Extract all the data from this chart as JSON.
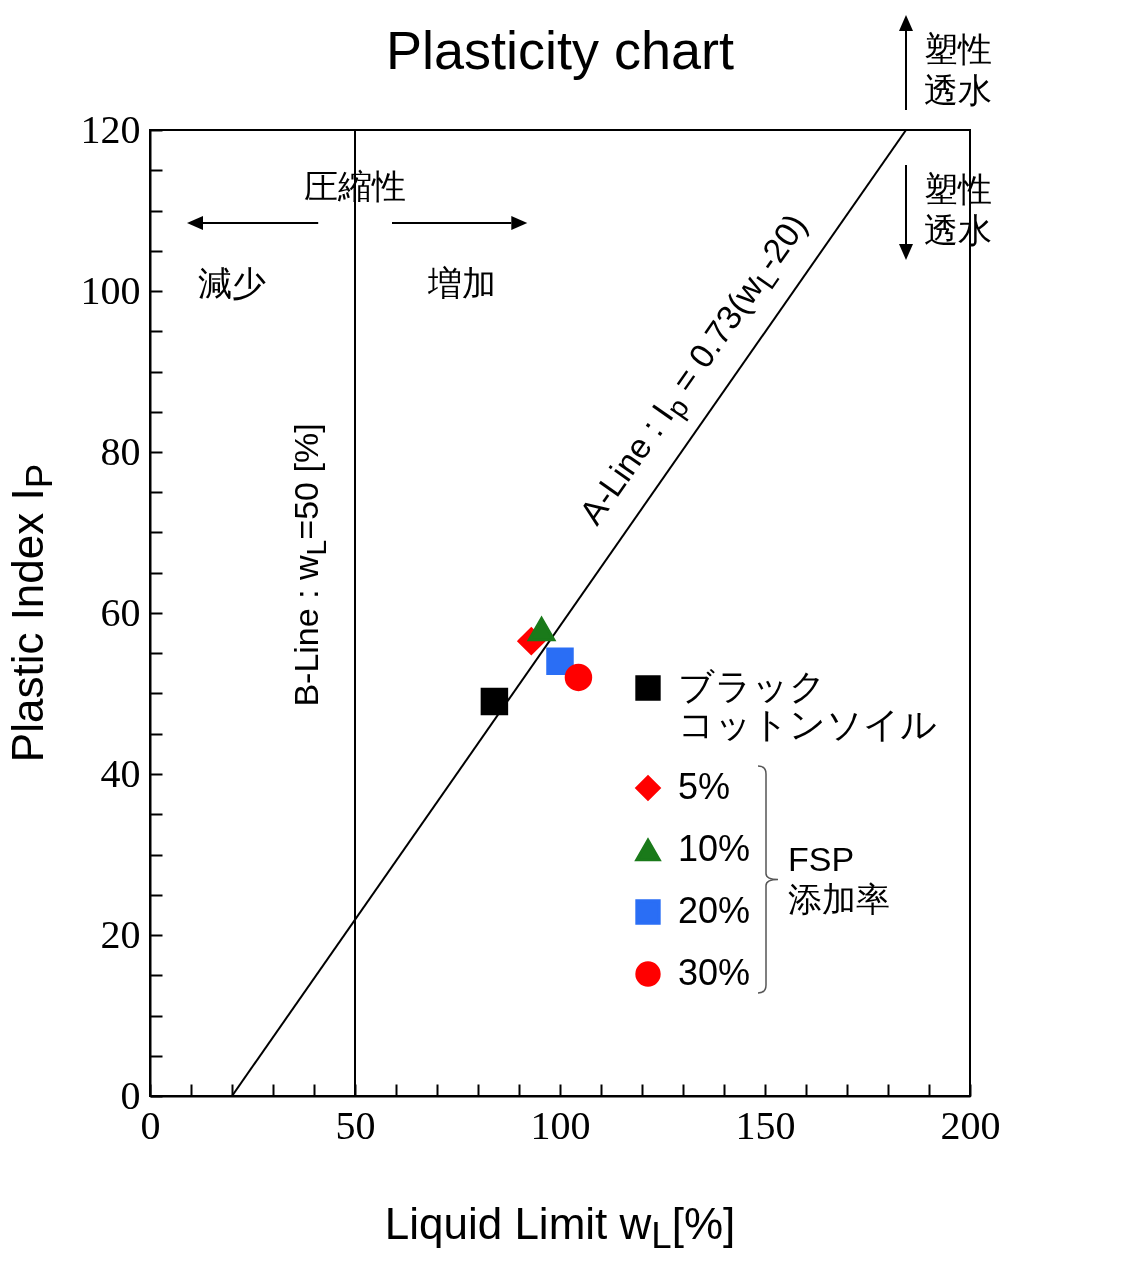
{
  "chart_data": {
    "type": "scatter",
    "title": "Plasticity chart",
    "xlabel": "Liquid Limit w$_{L}$[%]",
    "ylabel": "Plastic Index I$_{P}$",
    "xlim": [
      0,
      200
    ],
    "ylim": [
      0,
      120
    ],
    "xticks": [
      0,
      {
        "value": 10,
        "label": null
      },
      {
        "value": 20,
        "label": null
      },
      {
        "value": 30,
        "label": null
      },
      {
        "value": 40,
        "label": null
      },
      50,
      {
        "value": 60,
        "label": null
      },
      {
        "value": 70,
        "label": null
      },
      {
        "value": 80,
        "label": null
      },
      {
        "value": 90,
        "label": null
      },
      100,
      {
        "value": 110,
        "label": null
      },
      {
        "value": 120,
        "label": null
      },
      {
        "value": 130,
        "label": null
      },
      {
        "value": 140,
        "label": null
      },
      150,
      {
        "value": 160,
        "label": null
      },
      {
        "value": 170,
        "label": null
      },
      {
        "value": 180,
        "label": null
      },
      {
        "value": 190,
        "label": null
      },
      200
    ],
    "yticks": [
      0,
      {
        "value": 5,
        "label": null
      },
      {
        "value": 10,
        "label": null
      },
      {
        "value": 15,
        "label": null
      },
      20,
      {
        "value": 25,
        "label": null
      },
      {
        "value": 30,
        "label": null
      },
      {
        "value": 35,
        "label": null
      },
      40,
      {
        "value": 45,
        "label": null
      },
      {
        "value": 50,
        "label": null
      },
      {
        "value": 55,
        "label": null
      },
      60,
      {
        "value": 65,
        "label": null
      },
      {
        "value": 70,
        "label": null
      },
      {
        "value": 75,
        "label": null
      },
      80,
      {
        "value": 85,
        "label": null
      },
      {
        "value": 90,
        "label": null
      },
      {
        "value": 95,
        "label": null
      },
      100,
      {
        "value": 105,
        "label": null
      },
      {
        "value": 110,
        "label": null
      },
      {
        "value": 115,
        "label": null
      },
      120
    ],
    "grid": false,
    "legend": "bottom right",
    "series": [
      {
        "name": "ブラックコットンソイル",
        "color": "#000000",
        "marker": "square",
        "x": [
          84
        ],
        "values": [
          49
        ]
      },
      {
        "name": "5%",
        "color": "#ff0000",
        "marker": "diamond",
        "x": [
          93
        ],
        "values": [
          56.5
        ]
      },
      {
        "name": "10%",
        "color": "#1a7a1a",
        "marker": "triangle",
        "x": [
          95.5
        ],
        "values": [
          58
        ]
      },
      {
        "name": "20%",
        "color": "#2a6ef5",
        "marker": "square",
        "x": [
          100
        ],
        "values": [
          54
        ]
      },
      {
        "name": "30%",
        "color": "#ff0000",
        "marker": "circle",
        "x": [
          104.5
        ],
        "values": [
          52
        ]
      },
      {
        "type": "line",
        "color": "#000000",
        "marker": "none",
        "line_style": "solid",
        "x": [
          20,
          184.4
        ],
        "values": [
          0,
          120
        ]
      }
    ],
    "ref_lines": [
      {
        "axis": "x",
        "value": 50,
        "label": "B-Line : w$_{L}$=50 [%]",
        "color": "#000000"
      }
    ],
    "annotations": [
      "圧縮性",
      "減少",
      "増加",
      "塑性透水",
      "塑性透水",
      "FSP\n添加率",
      {
        "text": "A-Line : I$_{p}$ = 0.73(w$_{L}$-20)",
        "x": 140,
        "y": 87.6
      }
    ]
  }
}
